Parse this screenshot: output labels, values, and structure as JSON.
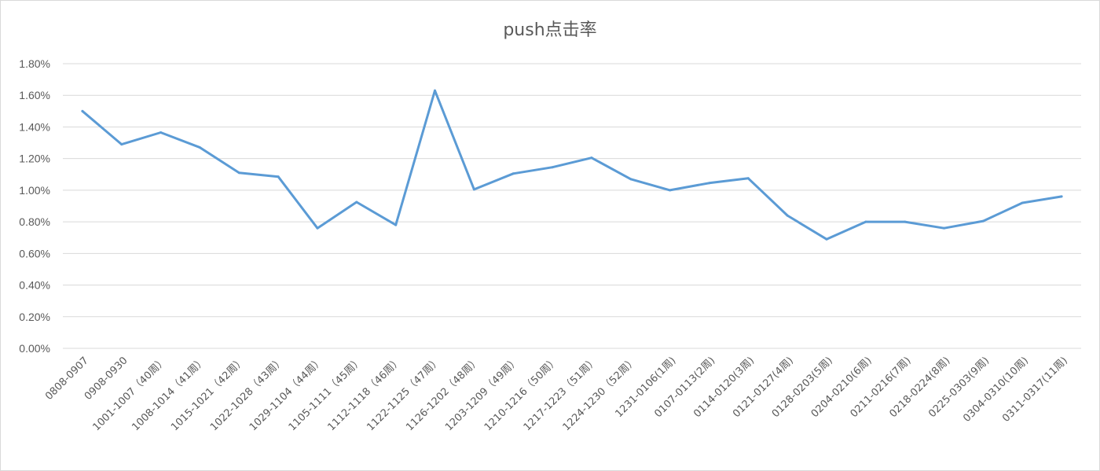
{
  "chart_data": {
    "type": "line",
    "title": "push点击率",
    "xlabel": "",
    "ylabel": "",
    "ylim": [
      0,
      0.018
    ],
    "y_tick_values": [
      0,
      0.002,
      0.004,
      0.006,
      0.008,
      0.01,
      0.012,
      0.014,
      0.016,
      0.018
    ],
    "y_tick_labels": [
      "0.00%",
      "0.20%",
      "0.40%",
      "0.60%",
      "0.80%",
      "1.00%",
      "1.20%",
      "1.40%",
      "1.60%",
      "1.80%"
    ],
    "grid": true,
    "line_color": "#5b9bd5",
    "categories": [
      "0808-0907",
      "0908-0930",
      "1001-1007（40周）",
      "1008-1014（41周）",
      "1015-1021（42周）",
      "1022-1028（43周）",
      "1029-1104（44周）",
      "1105-1111（45周）",
      "1112-1118（46周）",
      "1122-1125（47周）",
      "1126-1202（48周）",
      "1203-1209（49周）",
      "1210-1216（50周）",
      "1217-1223（51周）",
      "1224-1230（52周）",
      "1231-0106(1周)",
      "0107-0113(2周)",
      "0114-0120(3周)",
      "0121-0127(4周)",
      "0128-0203(5周)",
      "0204-0210(6周)",
      "0211-0216(7周)",
      "0218-0224(8周)",
      "0225-0303(9周)",
      "0304-0310(10周)",
      "0311-0317(11周)"
    ],
    "values": [
      0.015,
      0.0129,
      0.01365,
      0.0127,
      0.0111,
      0.01085,
      0.0076,
      0.00925,
      0.0078,
      0.0163,
      0.01005,
      0.01105,
      0.01145,
      0.01205,
      0.0107,
      0.01,
      0.01045,
      0.01075,
      0.0084,
      0.0069,
      0.008,
      0.008,
      0.0076,
      0.00805,
      0.0092,
      0.0096
    ]
  }
}
